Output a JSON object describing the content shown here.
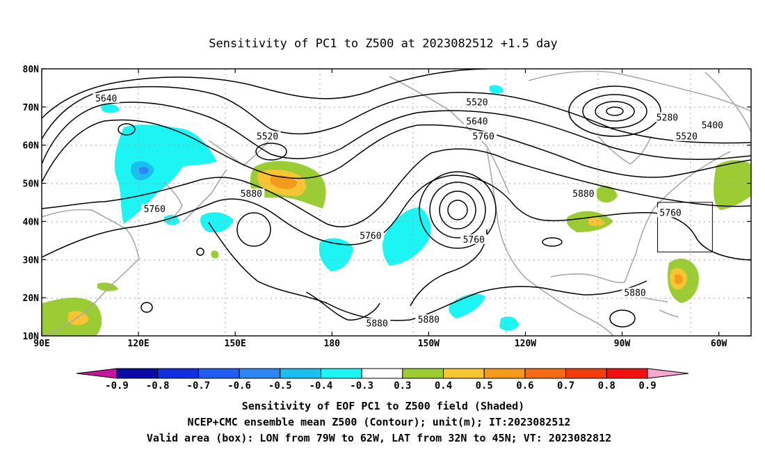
{
  "title": "Sensitivity of PC1 to Z500 at 2023082512 +1.5 day",
  "map": {
    "lon_range": [
      90,
      310
    ],
    "lat_range": [
      10,
      80
    ],
    "x_ticks": [
      {
        "lon": 90,
        "label": "90E"
      },
      {
        "lon": 120,
        "label": "120E"
      },
      {
        "lon": 150,
        "label": "150E"
      },
      {
        "lon": 180,
        "label": "180"
      },
      {
        "lon": 210,
        "label": "150W"
      },
      {
        "lon": 240,
        "label": "120W"
      },
      {
        "lon": 270,
        "label": "90W"
      },
      {
        "lon": 300,
        "label": "60W"
      }
    ],
    "y_ticks": [
      {
        "lat": 80,
        "label": "80N"
      },
      {
        "lat": 70,
        "label": "70N"
      },
      {
        "lat": 60,
        "label": "60N"
      },
      {
        "lat": 50,
        "label": "50N"
      },
      {
        "lat": 40,
        "label": "40N"
      },
      {
        "lat": 30,
        "label": "30N"
      },
      {
        "lat": 20,
        "label": "20N"
      },
      {
        "lat": 10,
        "label": "10N"
      }
    ],
    "grid": true,
    "valid_box": {
      "lon": [
        281,
        298
      ],
      "lat": [
        32,
        45
      ]
    },
    "contour_labels": [
      {
        "text": "5640",
        "lon": 110,
        "lat": 72
      },
      {
        "text": "5520",
        "lon": 160,
        "lat": 62
      },
      {
        "text": "5520",
        "lon": 225,
        "lat": 71
      },
      {
        "text": "5640",
        "lon": 225,
        "lat": 66
      },
      {
        "text": "5760",
        "lon": 227,
        "lat": 62
      },
      {
        "text": "5280",
        "lon": 284,
        "lat": 67
      },
      {
        "text": "5400",
        "lon": 298,
        "lat": 65
      },
      {
        "text": "5520",
        "lon": 290,
        "lat": 62
      },
      {
        "text": "5760",
        "lon": 125,
        "lat": 43
      },
      {
        "text": "5880",
        "lon": 155,
        "lat": 47
      },
      {
        "text": "5760",
        "lon": 192,
        "lat": 36
      },
      {
        "text": "5880",
        "lon": 258,
        "lat": 47
      },
      {
        "text": "5760",
        "lon": 285,
        "lat": 42
      },
      {
        "text": "5760",
        "lon": 224,
        "lat": 35
      },
      {
        "text": "5880",
        "lon": 274,
        "lat": 21
      },
      {
        "text": "5880",
        "lon": 194,
        "lat": 13
      },
      {
        "text": "5880",
        "lon": 210,
        "lat": 14
      }
    ]
  },
  "colorbar": {
    "labels": [
      "-0.9",
      "-0.8",
      "-0.7",
      "-0.6",
      "-0.5",
      "-0.4",
      "-0.3",
      "0.3",
      "0.4",
      "0.5",
      "0.6",
      "0.7",
      "0.8",
      "0.9"
    ],
    "colors": [
      "#0a0aa8",
      "#1030e0",
      "#1e5cf2",
      "#2e86f2",
      "#19bfef",
      "#1df4f4",
      "#ffffff",
      "#9ccc34",
      "#f7c534",
      "#f79a1a",
      "#f76a16",
      "#f23c0e",
      "#f01010"
    ],
    "low_color": "#c8149c",
    "high_color": "#f7a8d0"
  },
  "caption": [
    "Sensitivity of EOF PC1 to Z500 field (Shaded)",
    "NCEP+CMC ensemble mean Z500 (Contour); unit(m); IT:2023082512",
    "Valid area (box): LON from 79W to 62W, LAT from 32N to 45N; VT: 2023082812"
  ]
}
